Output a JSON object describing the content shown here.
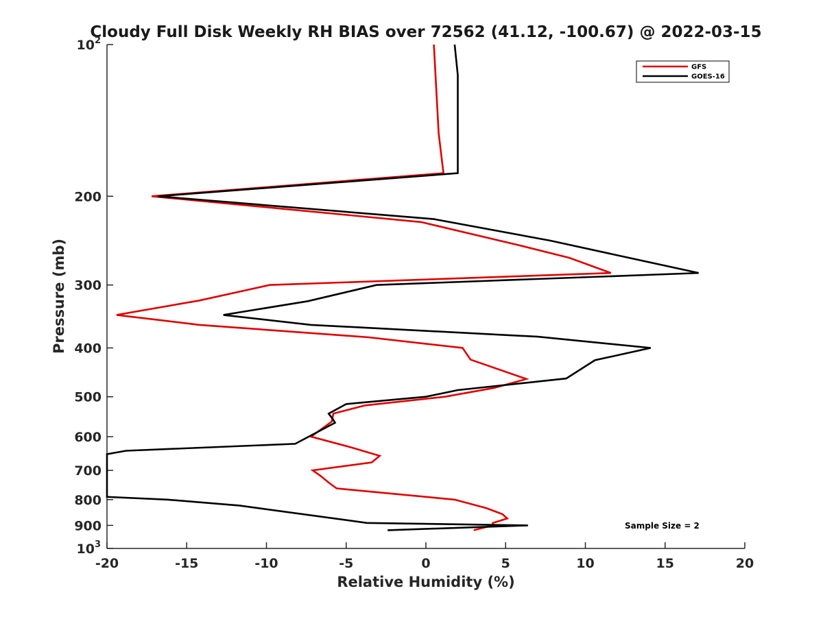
{
  "chart_data": {
    "type": "line",
    "title": "Cloudy Full Disk Weekly RH BIAS over 72562 (41.12, -100.67) @ 2022-03-15",
    "xlabel": "Relative Humidity (%)",
    "ylabel": "Pressure (mb)",
    "xlim": [
      -20,
      20
    ],
    "ylim": [
      100,
      1000
    ],
    "yscale": "log",
    "y_reversed": true,
    "grid": false,
    "legend_position": "top-right",
    "x_ticks": [
      -20,
      -15,
      -10,
      -5,
      0,
      5,
      10,
      15,
      20
    ],
    "x_tick_labels": [
      "-20",
      "-15",
      "-10",
      "-5",
      "0",
      "5",
      "10",
      "15",
      "20"
    ],
    "y_ticks": [
      100,
      200,
      300,
      400,
      500,
      600,
      700,
      800,
      900,
      1000
    ],
    "y_tick_labels": [
      {
        "base": "10",
        "exp": "2"
      },
      {
        "base": "200",
        "exp": ""
      },
      {
        "base": "300",
        "exp": ""
      },
      {
        "base": "400",
        "exp": ""
      },
      {
        "base": "500",
        "exp": ""
      },
      {
        "base": "600",
        "exp": ""
      },
      {
        "base": "700",
        "exp": ""
      },
      {
        "base": "800",
        "exp": ""
      },
      {
        "base": "900",
        "exp": ""
      },
      {
        "base": "10",
        "exp": "3"
      }
    ],
    "series": [
      {
        "name": "GFS",
        "color": "#e00000",
        "points": [
          {
            "x": 0.5,
            "y": 100
          },
          {
            "x": 0.8,
            "y": 150
          },
          {
            "x": 1.1,
            "y": 180
          },
          {
            "x": -17.2,
            "y": 200
          },
          {
            "x": -0.3,
            "y": 225
          },
          {
            "x": 5.8,
            "y": 250
          },
          {
            "x": 9.0,
            "y": 265
          },
          {
            "x": 11.6,
            "y": 284
          },
          {
            "x": -9.8,
            "y": 300
          },
          {
            "x": -14.2,
            "y": 322
          },
          {
            "x": -19.4,
            "y": 344
          },
          {
            "x": -14.2,
            "y": 360
          },
          {
            "x": -3.6,
            "y": 381
          },
          {
            "x": 2.3,
            "y": 400
          },
          {
            "x": 2.8,
            "y": 422
          },
          {
            "x": 6.3,
            "y": 461
          },
          {
            "x": 4.3,
            "y": 480
          },
          {
            "x": 1.2,
            "y": 500
          },
          {
            "x": -3.8,
            "y": 520
          },
          {
            "x": -5.8,
            "y": 540
          },
          {
            "x": -5.9,
            "y": 560
          },
          {
            "x": -7.2,
            "y": 600
          },
          {
            "x": -4.7,
            "y": 630
          },
          {
            "x": -2.9,
            "y": 655
          },
          {
            "x": -3.4,
            "y": 675
          },
          {
            "x": -7.1,
            "y": 700
          },
          {
            "x": -6.6,
            "y": 718
          },
          {
            "x": -6.1,
            "y": 740
          },
          {
            "x": -5.6,
            "y": 760
          },
          {
            "x": 1.8,
            "y": 800
          },
          {
            "x": 3.8,
            "y": 832
          },
          {
            "x": 4.8,
            "y": 855
          },
          {
            "x": 5.1,
            "y": 872
          },
          {
            "x": 4.2,
            "y": 890
          },
          {
            "x": 4.2,
            "y": 900
          },
          {
            "x": 3.0,
            "y": 920
          }
        ]
      },
      {
        "name": "GOES-16",
        "color": "#000000",
        "points": [
          {
            "x": 1.8,
            "y": 100
          },
          {
            "x": 2.0,
            "y": 115
          },
          {
            "x": 2.0,
            "y": 180
          },
          {
            "x": -16.8,
            "y": 200
          },
          {
            "x": 0.5,
            "y": 222
          },
          {
            "x": 7.8,
            "y": 245
          },
          {
            "x": 17.1,
            "y": 284
          },
          {
            "x": -3.1,
            "y": 300
          },
          {
            "x": -7.4,
            "y": 323
          },
          {
            "x": -12.7,
            "y": 344
          },
          {
            "x": -7.2,
            "y": 360
          },
          {
            "x": 7.0,
            "y": 380
          },
          {
            "x": 14.1,
            "y": 400
          },
          {
            "x": 10.6,
            "y": 423
          },
          {
            "x": 8.8,
            "y": 460
          },
          {
            "x": 2.0,
            "y": 485
          },
          {
            "x": 0.0,
            "y": 500
          },
          {
            "x": -5.0,
            "y": 517
          },
          {
            "x": -6.1,
            "y": 540
          },
          {
            "x": -5.8,
            "y": 556
          },
          {
            "x": -5.7,
            "y": 563
          },
          {
            "x": -8.2,
            "y": 620
          },
          {
            "x": -18.8,
            "y": 640
          },
          {
            "x": -20.0,
            "y": 650
          },
          {
            "x": -20.0,
            "y": 790
          },
          {
            "x": -16.2,
            "y": 800
          },
          {
            "x": -11.7,
            "y": 822
          },
          {
            "x": -3.7,
            "y": 890
          },
          {
            "x": 6.4,
            "y": 900
          },
          {
            "x": -2.4,
            "y": 920
          }
        ]
      }
    ],
    "annotations": [
      {
        "text": "Sample Size = 2"
      }
    ]
  }
}
